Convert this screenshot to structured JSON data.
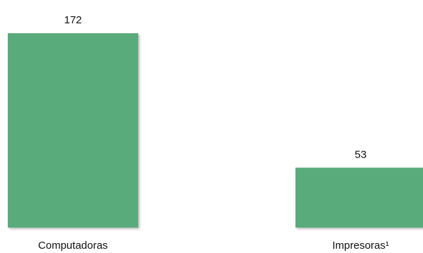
{
  "chart_data": {
    "type": "bar",
    "categories": [
      "Computadoras",
      "Impresoras¹"
    ],
    "values": [
      172,
      53
    ],
    "value_labels": [
      "172",
      "53"
    ],
    "bar_color": "#5aab7b",
    "ylim": [
      0,
      172
    ],
    "grid": false,
    "legend": "none"
  }
}
